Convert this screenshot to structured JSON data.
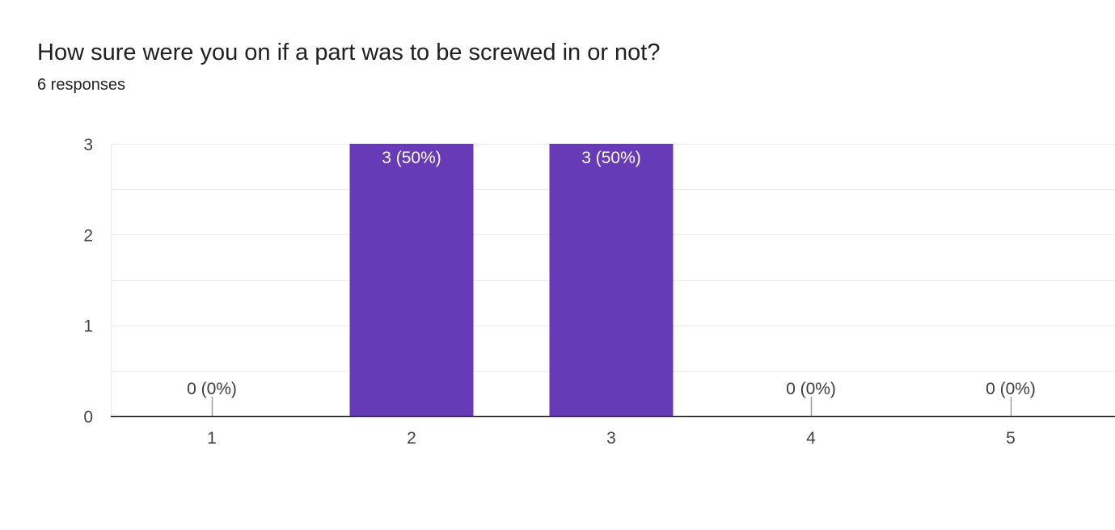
{
  "question": {
    "title": "How sure were you on if a part was to be screwed in or not?",
    "responses_label": "6 responses"
  },
  "colors": {
    "bar": "#673ab7",
    "grid": "#ebebeb",
    "axis": "#333333",
    "text": "#202124"
  },
  "chart_data": {
    "type": "bar",
    "categories": [
      "1",
      "2",
      "3",
      "4",
      "5"
    ],
    "values": [
      0,
      3,
      3,
      0,
      0
    ],
    "data_labels": [
      "0 (0%)",
      "3 (50%)",
      "3 (50%)",
      "0 (0%)",
      "0 (0%)"
    ],
    "ylim": [
      0,
      3
    ],
    "yticks": [
      0,
      1,
      2,
      3
    ],
    "grid": true,
    "legend": "none",
    "xlabel": "",
    "ylabel": ""
  }
}
